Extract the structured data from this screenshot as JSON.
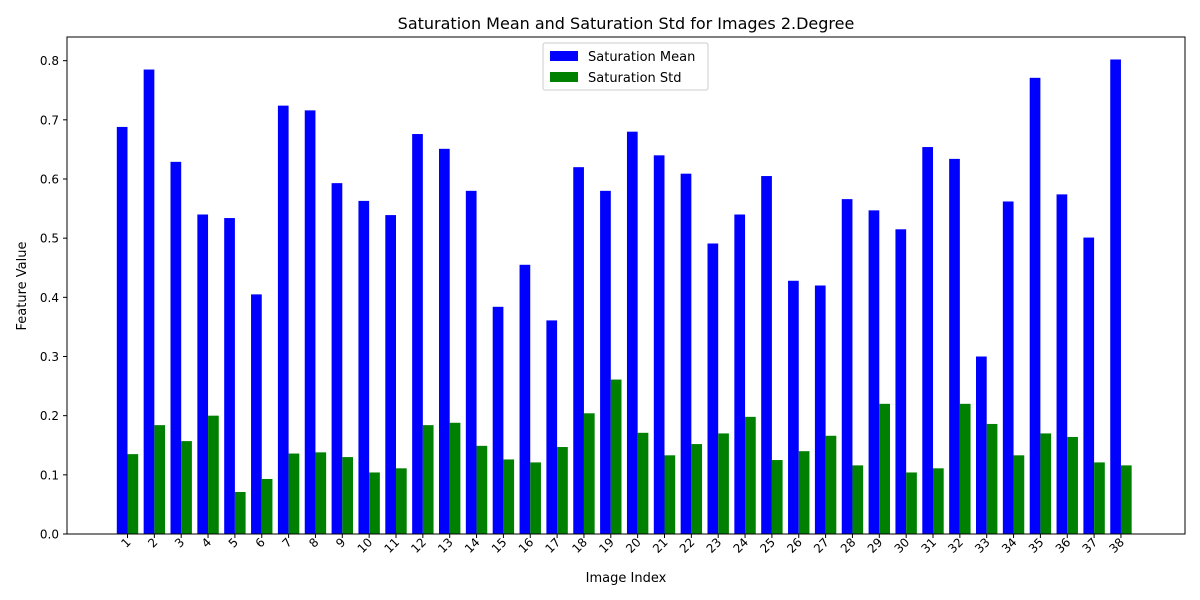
{
  "chart_data": {
    "type": "bar",
    "title": "Saturation Mean and Saturation Std for Images 2.Degree",
    "xlabel": "Image Index",
    "ylabel": "Feature Value",
    "ylim": [
      0,
      0.84
    ],
    "yticks": [
      "0.0",
      "0.1",
      "0.2",
      "0.3",
      "0.4",
      "0.5",
      "0.6",
      "0.7",
      "0.8"
    ],
    "grid": false,
    "legend_position": "top-center",
    "categories": [
      "1",
      "2",
      "3",
      "4",
      "5",
      "6",
      "7",
      "8",
      "9",
      "10",
      "11",
      "12",
      "13",
      "14",
      "15",
      "16",
      "17",
      "18",
      "19",
      "20",
      "21",
      "22",
      "23",
      "24",
      "25",
      "26",
      "27",
      "28",
      "29",
      "30",
      "31",
      "32",
      "33",
      "34",
      "35",
      "36",
      "37",
      "38"
    ],
    "series": [
      {
        "name": "Saturation Mean",
        "color": "#0000ff",
        "values": [
          0.688,
          0.785,
          0.629,
          0.54,
          0.534,
          0.405,
          0.724,
          0.716,
          0.593,
          0.563,
          0.539,
          0.676,
          0.651,
          0.58,
          0.384,
          0.455,
          0.361,
          0.62,
          0.58,
          0.68,
          0.64,
          0.609,
          0.491,
          0.54,
          0.605,
          0.428,
          0.42,
          0.566,
          0.547,
          0.515,
          0.654,
          0.634,
          0.3,
          0.562,
          0.771,
          0.574,
          0.501,
          0.802
        ]
      },
      {
        "name": "Saturation Std",
        "color": "#008000",
        "values": [
          0.135,
          0.184,
          0.157,
          0.2,
          0.071,
          0.093,
          0.136,
          0.138,
          0.13,
          0.104,
          0.111,
          0.184,
          0.188,
          0.149,
          0.126,
          0.121,
          0.147,
          0.204,
          0.261,
          0.171,
          0.133,
          0.152,
          0.17,
          0.198,
          0.125,
          0.14,
          0.166,
          0.116,
          0.22,
          0.104,
          0.111,
          0.22,
          0.186,
          0.133,
          0.17,
          0.164,
          0.121,
          0.116
        ]
      }
    ]
  }
}
